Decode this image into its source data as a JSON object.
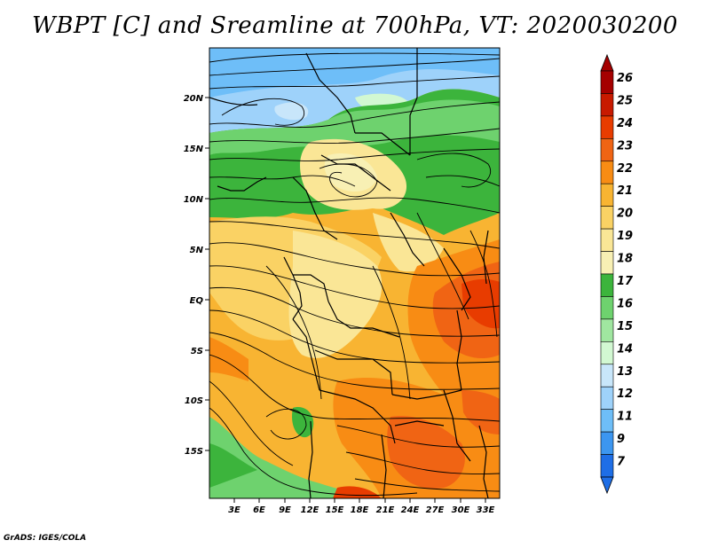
{
  "title": "WBPT [C] and Sreamline at 700hPa, VT: 2020030200",
  "footer": "GrADS: IGES/COLA",
  "map": {
    "lon_ticks": [
      "3E",
      "6E",
      "9E",
      "12E",
      "15E",
      "18E",
      "21E",
      "24E",
      "27E",
      "30E",
      "33E"
    ],
    "lat_ticks": [
      "20N",
      "15N",
      "10N",
      "5N",
      "EQ",
      "5S",
      "10S",
      "15S"
    ],
    "field": "Wet-bulb potential temperature",
    "units": "C",
    "level": "700hPa"
  },
  "colorbar": {
    "labels": [
      "26",
      "25",
      "24",
      "23",
      "22",
      "21",
      "20",
      "19",
      "18",
      "17",
      "16",
      "15",
      "14",
      "13",
      "12",
      "11",
      "9",
      "7"
    ],
    "colors": [
      "#a50000",
      "#c81a00",
      "#e83c00",
      "#f06414",
      "#f88c14",
      "#f8b432",
      "#fad264",
      "#fae696",
      "#f8f0b4",
      "#3cb43c",
      "#6ed26e",
      "#a0e6a0",
      "#d2f8d2",
      "#c8e6fa",
      "#9ed2fa",
      "#6ebef8",
      "#3c96f0",
      "#1e6ee6"
    ]
  }
}
